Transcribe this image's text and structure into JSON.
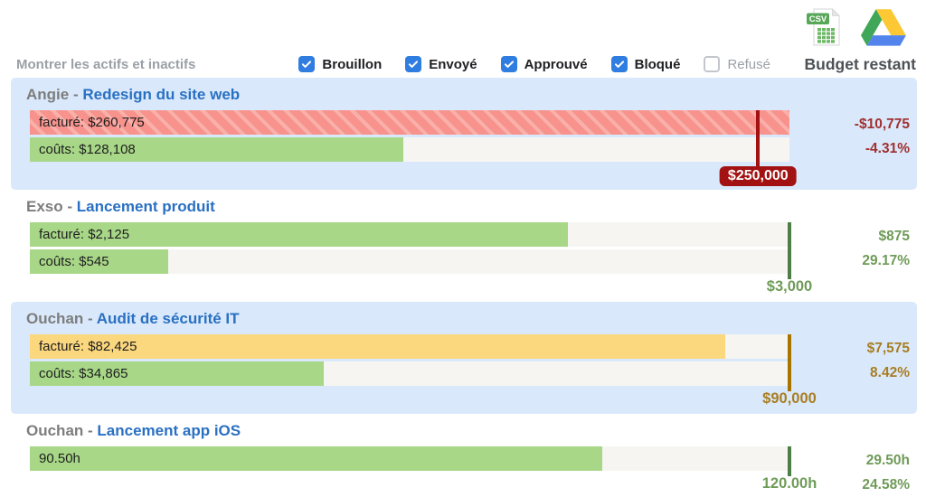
{
  "ui": {
    "show_toggle_label": "Montrer les actifs et inactifs",
    "budget_column_label": "Budget restant",
    "title_separator": " - ",
    "csv_icon_text": "CSV",
    "filters": [
      {
        "label": "Brouillon",
        "checked": true
      },
      {
        "label": "Envoyé",
        "checked": true
      },
      {
        "label": "Approuvé",
        "checked": true
      },
      {
        "label": "Bloqué",
        "checked": true
      },
      {
        "label": "Refusé",
        "checked": false
      }
    ]
  },
  "colors": {
    "checkbox": "#2F7DE1",
    "muted": "#9AA0A6",
    "dark": "#202124",
    "budget_head": "#4C5156",
    "row_hl": "#D9E9FB",
    "track": "#F6F5F2",
    "green_bar": "#A7D787",
    "yellow_bar": "#FBD77D",
    "red_bar": "#F7928C",
    "red_stripe": "#FAB0AA",
    "over": "#A31212",
    "over_text": "#A03030",
    "ok_text": "#6F9B58",
    "ok_line": "#4E7D46",
    "warn_text": "#A87D22",
    "warn_line": "#A87400",
    "client": "#7D7D7D",
    "project": "#2A70C2"
  },
  "chart_data": {
    "type": "bar",
    "orientation": "horizontal",
    "rows": [
      {
        "client": "Angie",
        "project": "Redesign du site web",
        "highlighted": true,
        "status": "over",
        "bars": [
          {
            "label": "facturé: $260,775",
            "value": 260775,
            "color_key": "red-striped"
          },
          {
            "label": "coûts: $128,108",
            "value": 128108,
            "color_key": "green"
          }
        ],
        "budget": {
          "value": 250000,
          "label": "$250,000"
        },
        "remaining": {
          "amount": "-$10,775",
          "percent": "-4.31%"
        }
      },
      {
        "client": "Exso",
        "project": "Lancement produit",
        "highlighted": false,
        "status": "ok",
        "bars": [
          {
            "label": "facturé: $2,125",
            "value": 2125,
            "color_key": "green"
          },
          {
            "label": "coûts: $545",
            "value": 545,
            "color_key": "green"
          }
        ],
        "budget": {
          "value": 3000,
          "label": "$3,000"
        },
        "remaining": {
          "amount": "$875",
          "percent": "29.17%"
        }
      },
      {
        "client": "Ouchan",
        "project": "Audit de sécurité IT",
        "highlighted": true,
        "status": "warning",
        "bars": [
          {
            "label": "facturé: $82,425",
            "value": 82425,
            "color_key": "yellow"
          },
          {
            "label": "coûts: $34,865",
            "value": 34865,
            "color_key": "green"
          }
        ],
        "budget": {
          "value": 90000,
          "label": "$90,000"
        },
        "remaining": {
          "amount": "$7,575",
          "percent": "8.42%"
        }
      },
      {
        "client": "Ouchan",
        "project": "Lancement app iOS",
        "highlighted": false,
        "status": "ok",
        "bars": [
          {
            "label": "90.50h",
            "value": 90.5,
            "color_key": "green"
          }
        ],
        "budget": {
          "value": 120,
          "label": "120.00h"
        },
        "remaining": {
          "amount": "29.50h",
          "percent": "24.58%"
        }
      }
    ]
  }
}
